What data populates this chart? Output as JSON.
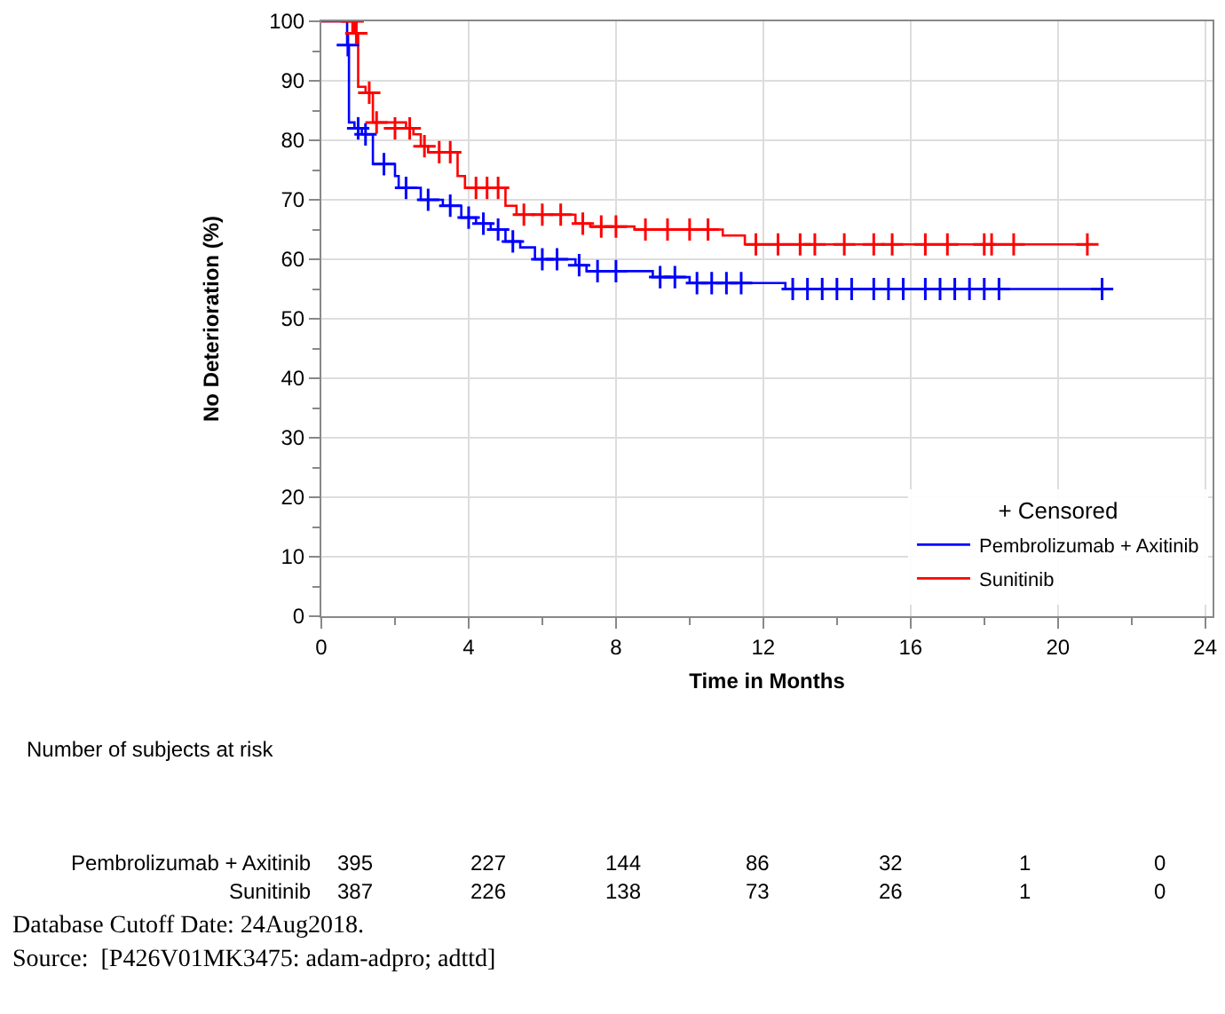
{
  "chart_data": {
    "type": "step",
    "xlabel": "Time in Months",
    "ylabel": "No Deterioration (%)",
    "legend_title": "+ Censored",
    "xlim": [
      0,
      24.2
    ],
    "ylim": [
      0,
      100
    ],
    "xticks": [
      0,
      {
        "value": 2,
        "label": null
      },
      4,
      {
        "value": 6,
        "label": null
      },
      8,
      {
        "value": 10,
        "label": null
      },
      12,
      {
        "value": 14,
        "label": null
      },
      16,
      {
        "value": 18,
        "label": null
      },
      20,
      {
        "value": 22,
        "label": null
      },
      24
    ],
    "yticks": [
      0,
      {
        "value": 5,
        "label": null
      },
      10,
      {
        "value": 15,
        "label": null
      },
      20,
      {
        "value": 25,
        "label": null
      },
      30,
      {
        "value": 35,
        "label": null
      },
      40,
      {
        "value": 45,
        "label": null
      },
      50,
      {
        "value": 55,
        "label": null
      },
      60,
      {
        "value": 65,
        "label": null
      },
      70,
      {
        "value": 75,
        "label": null
      },
      80,
      {
        "value": 85,
        "label": null
      },
      90,
      {
        "value": 95,
        "label": null
      },
      100
    ],
    "grid": true,
    "legend": "bottom right",
    "series": [
      {
        "name": "Pembrolizumab + Axitinib",
        "color": "#0000ff",
        "x": [
          0,
          0.7,
          0.75,
          0.9,
          1.1,
          1.4,
          2.0,
          2.1,
          2.7,
          3.3,
          3.8,
          4.2,
          4.6,
          5.0,
          5.4,
          5.8,
          6.9,
          7.2,
          9.0,
          10.0,
          12.6,
          21.2
        ],
        "values": [
          100,
          96,
          83,
          82,
          81,
          76,
          74,
          72,
          70,
          69,
          67,
          66,
          65,
          63,
          62,
          60,
          59,
          58,
          57,
          56,
          55,
          55
        ]
      },
      {
        "name": "Sunitinib",
        "color": "#ff0000",
        "x": [
          0,
          0.9,
          1.0,
          1.2,
          1.4,
          2.3,
          2.5,
          2.7,
          2.9,
          3.7,
          3.9,
          5.0,
          5.3,
          6.9,
          7.3,
          8.5,
          10.9,
          11.5,
          20.8
        ],
        "values": [
          100,
          98,
          89,
          88,
          83,
          82,
          81,
          79,
          78,
          74,
          72,
          69,
          67.5,
          66,
          65.5,
          65,
          64,
          62.5,
          62.5
        ]
      },
      {
        "color": "#0000ff",
        "type": "scatter",
        "marker": "cross",
        "x": [
          0.72,
          1.0,
          1.2,
          1.7,
          2.3,
          2.9,
          3.5,
          4.0,
          4.4,
          4.8,
          5.2,
          6.0,
          6.4,
          7.0,
          7.5,
          8.0,
          9.2,
          9.6,
          10.2,
          10.6,
          11.0,
          11.4,
          12.8,
          13.2,
          13.6,
          14.0,
          14.4,
          15.0,
          15.4,
          15.8,
          16.4,
          16.8,
          17.2,
          17.6,
          18.0,
          18.4,
          21.2
        ],
        "values": [
          96,
          82,
          81,
          76,
          72,
          70,
          69,
          67,
          66,
          65,
          63,
          60,
          60,
          59,
          58,
          58,
          57,
          57,
          56,
          56,
          56,
          56,
          55,
          55,
          55,
          55,
          55,
          55,
          55,
          55,
          55,
          55,
          55,
          55,
          55,
          55,
          55
        ]
      },
      {
        "color": "#ff0000",
        "type": "scatter",
        "marker": "cross",
        "x": [
          0.85,
          0.95,
          1.3,
          1.5,
          2.0,
          2.4,
          2.8,
          3.2,
          3.5,
          4.2,
          4.5,
          4.8,
          5.5,
          6.0,
          6.5,
          7.1,
          7.6,
          8.0,
          8.8,
          9.4,
          10.0,
          10.5,
          11.8,
          12.4,
          13.0,
          13.4,
          14.2,
          15.0,
          15.5,
          16.4,
          17.0,
          18.0,
          18.2,
          18.8,
          20.8
        ],
        "values": [
          100,
          98,
          88,
          83,
          82,
          82,
          79,
          78,
          78,
          72,
          72,
          72,
          67.5,
          67.5,
          67.5,
          66,
          65.5,
          65.5,
          65,
          65,
          65,
          65,
          62.5,
          62.5,
          62.5,
          62.5,
          62.5,
          62.5,
          62.5,
          62.5,
          62.5,
          62.5,
          62.5,
          62.5,
          62.5
        ]
      }
    ],
    "annotations": [
      "Number of subjects at risk",
      "Pembrolizumab + Axitinib",
      "395",
      "227",
      "144",
      "86",
      "32",
      "1",
      "0",
      "Sunitinib",
      "387",
      "226",
      "138",
      "73",
      "26",
      "1",
      "0",
      "Database Cutoff Date: 24Aug2018.",
      "Source:  [P426V01MK3475: adam-adpro; adttd]"
    ]
  }
}
